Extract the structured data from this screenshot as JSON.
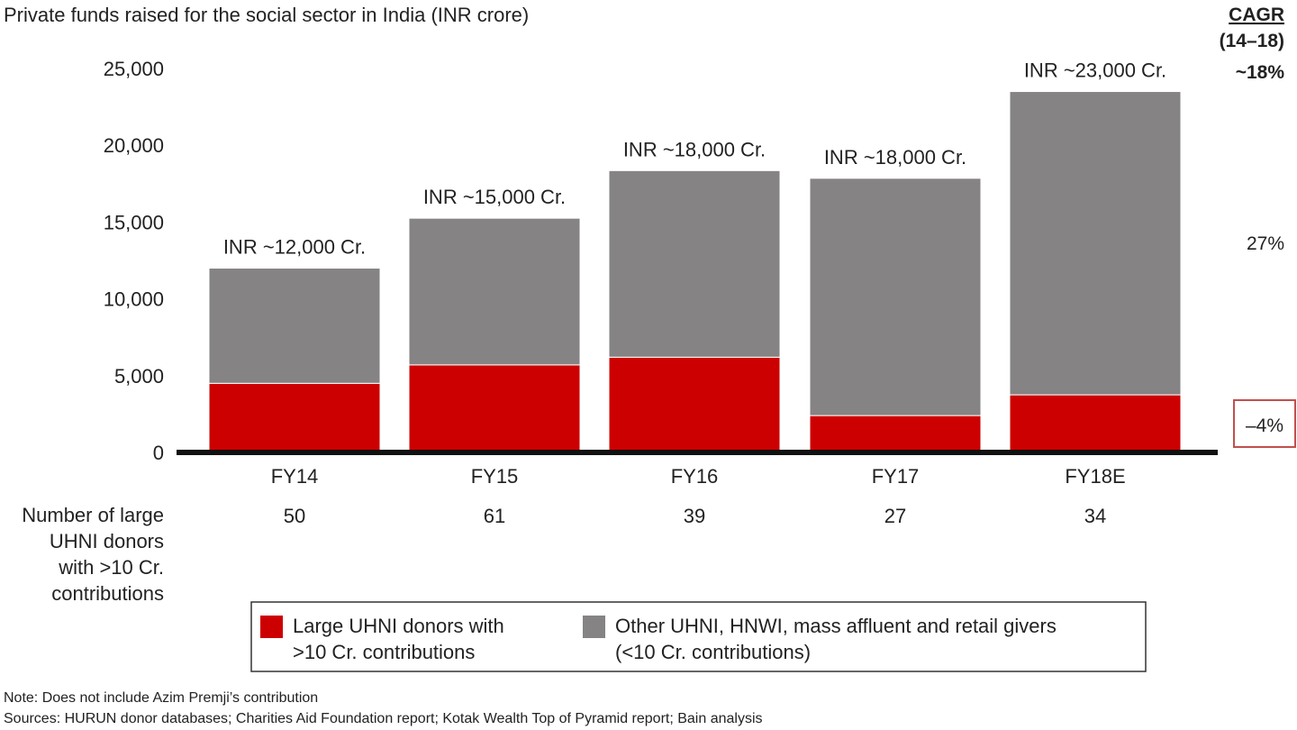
{
  "chart_data": {
    "type": "bar",
    "stacked": true,
    "title": "Private funds raised for the social sector in India (INR crore)",
    "categories": [
      "FY14",
      "FY15",
      "FY16",
      "FY17",
      "FY18E"
    ],
    "series": [
      {
        "name": "Large UHNI donors with >10 Cr. contributions",
        "values": [
          4500,
          5700,
          6200,
          2400,
          3750
        ]
      },
      {
        "name": "Other UHNI, HNWI, mass affluent and retail givers (<10 Cr. contributions)",
        "values": [
          7500,
          9550,
          12150,
          15450,
          19750
        ]
      }
    ],
    "totals_labels": [
      "INR ~12,000 Cr.",
      "INR ~15,000 Cr.",
      "INR ~18,000 Cr.",
      "INR ~18,000 Cr.",
      "INR ~23,000 Cr."
    ],
    "ylim": [
      0,
      25000
    ],
    "yticks": [
      0,
      5000,
      10000,
      15000,
      20000,
      25000
    ],
    "ytick_labels": [
      "0",
      "5,000",
      "10,000",
      "15,000",
      "20,000",
      "25,000"
    ],
    "grid": false,
    "legend_position": "bottom",
    "colors": {
      "large_uhni": "#cc0000",
      "other": "#858383",
      "axis": "#111111",
      "box": "#c0504d"
    },
    "cagr": {
      "heading": "CAGR",
      "period": "(14–18)",
      "total": "~18%",
      "other": "27%",
      "large_uhni": "–4%"
    },
    "donor_row": {
      "label": [
        "Number of large",
        "UHNI donors",
        "with >10 Cr.",
        "contributions"
      ],
      "values": [
        "50",
        "61",
        "39",
        "27",
        "34"
      ]
    },
    "legend": [
      {
        "label": [
          "Large UHNI donors with",
          ">10 Cr. contributions"
        ]
      },
      {
        "label": [
          "Other UHNI, HNWI, mass affluent and retail givers",
          "(<10 Cr. contributions)"
        ]
      }
    ]
  },
  "footer": {
    "note": "Note: Does not include Azim Premji’s contribution",
    "sources": "Sources: HURUN donor databases; Charities Aid Foundation report; Kotak Wealth Top of Pyramid report; Bain analysis"
  }
}
